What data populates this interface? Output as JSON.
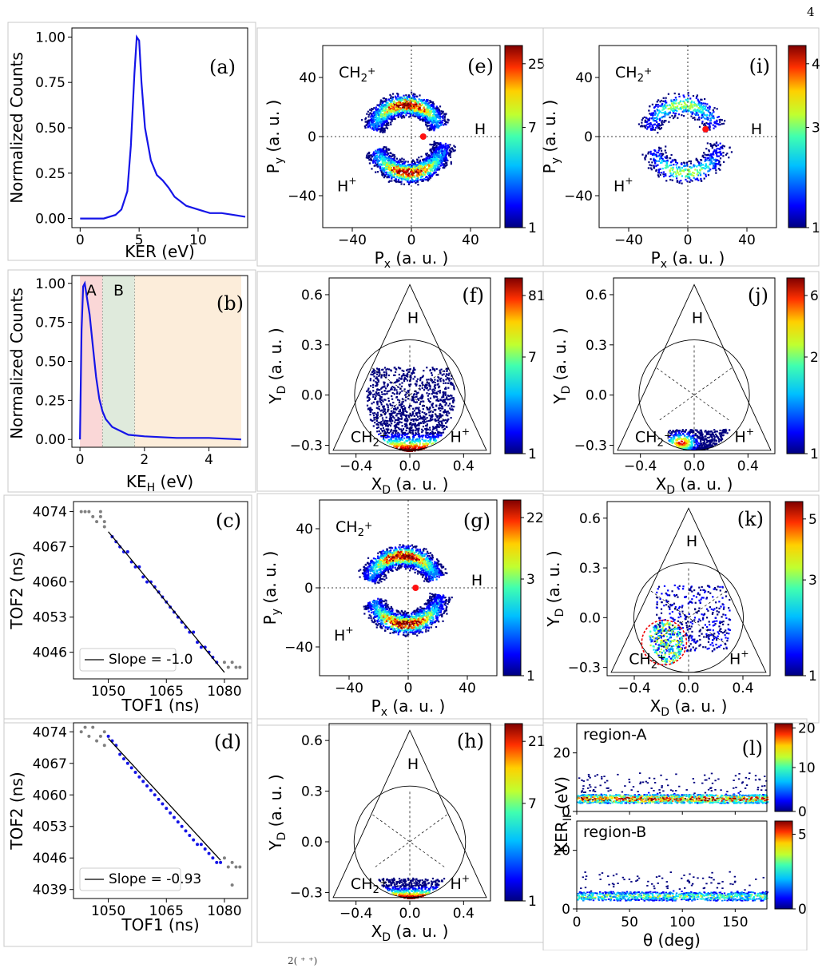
{
  "page_number": "4",
  "caption_fragment": "2( ⁺ ⁺)",
  "colormap": [
    "#00007f",
    "#0000ff",
    "#0080ff",
    "#00e0ff",
    "#3fffb7",
    "#b7ff3f",
    "#ffe600",
    "#ff6800",
    "#e80000",
    "#7f0000"
  ],
  "panels": {
    "a": {
      "label": "(a)",
      "ylabel": "Normalized Counts",
      "xlabel": "KER (eV)",
      "xticks": [
        "0",
        "5",
        "10"
      ],
      "yticks": [
        "0.00",
        "0.25",
        "0.50",
        "0.75",
        "1.00"
      ]
    },
    "b": {
      "label": "(b)",
      "ylabel": "Normalized Counts",
      "xlabel": "KE",
      "xlabel_sub": "H",
      "xlabel_unit": " (eV)",
      "xticks": [
        "0",
        "2",
        "4"
      ],
      "yticks": [
        "0.00",
        "0.25",
        "0.50",
        "0.75",
        "1.00"
      ],
      "region_a": "A",
      "region_b": "B"
    },
    "c": {
      "label": "(c)",
      "ylabel": "TOF2 (ns)",
      "xlabel": "TOF1 (ns)",
      "xticks": [
        "1050",
        "1065",
        "1080"
      ],
      "yticks": [
        "4074",
        "4067",
        "4060",
        "4053",
        "4046"
      ],
      "legend": "Slope = -1.0"
    },
    "d": {
      "label": "(d)",
      "ylabel": "TOF2 (ns)",
      "xlabel": "TOF1 (ns)",
      "xticks": [
        "1050",
        "1065",
        "1080"
      ],
      "yticks": [
        "4074",
        "4067",
        "4060",
        "4053",
        "4046",
        "4039"
      ],
      "legend": "Slope = -0.93"
    },
    "e": {
      "label": "(e)",
      "ylabel": "P",
      "ylabel_sub": "y",
      "xlabel": "P",
      "xlabel_sub": "x",
      "unit": " (a. u. )",
      "xticks": [
        "−40",
        "0",
        "40"
      ],
      "yticks": [
        "40",
        "0",
        "−40"
      ],
      "frag1": "CH",
      "frag1_sub": "2",
      "frag1_sup": "+",
      "frag2": "H",
      "frag3": "H",
      "frag3_sup": "+",
      "cbar": [
        "25",
        "7",
        "1"
      ]
    },
    "i": {
      "label": "(i)",
      "ylabel": "P",
      "ylabel_sub": "y",
      "xlabel": "P",
      "xlabel_sub": "x",
      "unit": " (a. u. )",
      "xticks": [
        "−40",
        "0",
        "40"
      ],
      "yticks": [
        "40",
        "0",
        "−40"
      ],
      "frag1": "CH",
      "frag1_sub": "2",
      "frag1_sup": "+",
      "frag2": "H",
      "frag3": "H",
      "frag3_sup": "+",
      "cbar": [
        "4",
        "3",
        "1"
      ]
    },
    "g": {
      "label": "(g)",
      "ylabel": "P",
      "ylabel_sub": "y",
      "xlabel": "P",
      "xlabel_sub": "x",
      "unit": " (a. u. )",
      "xticks": [
        "−40",
        "0",
        "40"
      ],
      "yticks": [
        "40",
        "0",
        "−40"
      ],
      "frag1": "CH",
      "frag1_sub": "2",
      "frag1_sup": "+",
      "frag2": "H",
      "frag3": "H",
      "frag3_sup": "+",
      "cbar": [
        "22",
        "3",
        "1"
      ]
    },
    "f": {
      "label": "(f)",
      "ylabel": "Y",
      "ylabel_sub": "D",
      "xlabel": "X",
      "xlabel_sub": "D",
      "unit": " (a. u. )",
      "xticks": [
        "−0.4",
        "0.0",
        "0.4"
      ],
      "yticks": [
        "0.6",
        "0.3",
        "0.0",
        "−0.3"
      ],
      "top": "H",
      "left": "CH",
      "left_sub": "2",
      "left_sup": "+",
      "right": "H",
      "right_sup": "+",
      "cbar": [
        "81",
        "7",
        "1"
      ]
    },
    "j": {
      "label": "(j)",
      "ylabel": "Y",
      "ylabel_sub": "D",
      "xlabel": "X",
      "xlabel_sub": "D",
      "unit": " (a. u. )",
      "xticks": [
        "−0.4",
        "0.0",
        "0.4"
      ],
      "yticks": [
        "0.6",
        "0.3",
        "0.0",
        "−0.3"
      ],
      "top": "H",
      "left": "CH",
      "left_sub": "2",
      "left_sup": "+",
      "right": "H",
      "right_sup": "+",
      "cbar": [
        "6",
        "2",
        "1"
      ]
    },
    "k": {
      "label": "(k)",
      "ylabel": "Y",
      "ylabel_sub": "D",
      "xlabel": "X",
      "xlabel_sub": "D",
      "unit": " (a. u. )",
      "xticks": [
        "−0.4",
        "0.0",
        "0.4"
      ],
      "yticks": [
        "0.6",
        "0.3",
        "0.0",
        "−0.3"
      ],
      "top": "H",
      "left": "CH",
      "left_sub": "2",
      "left_sup": "+",
      "right": "H",
      "right_sup": "+",
      "cbar": [
        "5",
        "3",
        "1"
      ]
    },
    "h": {
      "label": "(h)",
      "ylabel": "Y",
      "ylabel_sub": "D",
      "xlabel": "X",
      "xlabel_sub": "D",
      "unit": " (a. u. )",
      "xticks": [
        "−0.4",
        "0.0",
        "0.4"
      ],
      "yticks": [
        "0.6",
        "0.3",
        "0.0",
        "−0.3"
      ],
      "top": "H",
      "left": "CH",
      "left_sub": "2",
      "left_sup": "+",
      "right": "H",
      "right_sup": "+",
      "cbar": [
        "21",
        "7",
        "1"
      ]
    },
    "l": {
      "label": "(l)",
      "ylabel": "KER",
      "ylabel_sub": "II",
      "ylabel_unit": " (eV)",
      "xlabel": "θ (deg)",
      "xticks": [
        "0",
        "50",
        "100",
        "150"
      ],
      "yticks": [
        "20",
        "0"
      ],
      "region_a": "region-A",
      "region_b": "region-B",
      "cbar_a": [
        "20",
        "10",
        "0"
      ],
      "cbar_b": [
        "5",
        "0"
      ]
    }
  },
  "chart_data": [
    {
      "type": "line",
      "panel": "a",
      "title": "",
      "xlabel": "KER (eV)",
      "ylabel": "Normalized Counts",
      "xlim": [
        -0.7,
        14.2
      ],
      "ylim": [
        -0.05,
        1.05
      ],
      "x": [
        0,
        1,
        2,
        3,
        3.5,
        4,
        4.3,
        4.6,
        4.8,
        5.0,
        5.2,
        5.5,
        6,
        6.5,
        7,
        7.5,
        8,
        9,
        10,
        11,
        12,
        13,
        14
      ],
      "y": [
        0,
        0,
        0,
        0.02,
        0.05,
        0.15,
        0.4,
        0.8,
        1.0,
        0.98,
        0.75,
        0.5,
        0.32,
        0.24,
        0.21,
        0.17,
        0.12,
        0.07,
        0.05,
        0.03,
        0.03,
        0.02,
        0.01
      ]
    },
    {
      "type": "line",
      "panel": "b",
      "title": "",
      "xlabel": "KE_H (eV)",
      "ylabel": "Normalized Counts",
      "xlim": [
        -0.25,
        5.2
      ],
      "ylim": [
        -0.05,
        1.05
      ],
      "regions": [
        {
          "name": "A",
          "from": 0,
          "to": 0.7
        },
        {
          "name": "B",
          "from": 0.7,
          "to": 1.7
        },
        {
          "name": "",
          "from": 1.7,
          "to": 5
        }
      ],
      "x": [
        0,
        0.05,
        0.1,
        0.15,
        0.2,
        0.3,
        0.4,
        0.5,
        0.6,
        0.7,
        0.8,
        1.0,
        1.2,
        1.5,
        2,
        3,
        4,
        5
      ],
      "y": [
        0,
        0.7,
        0.98,
        1.0,
        0.93,
        0.8,
        0.6,
        0.4,
        0.26,
        0.18,
        0.13,
        0.08,
        0.06,
        0.03,
        0.02,
        0.01,
        0.01,
        0.0
      ]
    },
    {
      "type": "scatter",
      "panel": "c",
      "xlabel": "TOF1 (ns)",
      "ylabel": "TOF2 (ns)",
      "xlim": [
        1041,
        1086
      ],
      "ylim": [
        4040.7,
        4076
      ],
      "fit": {
        "slope": -1.0,
        "x": [
          1050,
          1080
        ],
        "y": [
          4070.0,
          4042.0
        ],
        "label": "Slope = -1.0"
      },
      "points_gray": [
        [
          1043,
          4074
        ],
        [
          1044,
          4074
        ],
        [
          1045,
          4074
        ],
        [
          1046,
          4073
        ],
        [
          1047,
          4072
        ],
        [
          1048,
          4074
        ],
        [
          1048,
          4073
        ],
        [
          1049,
          4071
        ],
        [
          1049,
          4072
        ],
        [
          1080,
          4044
        ],
        [
          1081,
          4043
        ],
        [
          1082,
          4044
        ],
        [
          1083,
          4043
        ],
        [
          1084,
          4043
        ]
      ],
      "points_blue": [
        [
          1051,
          4069
        ],
        [
          1052,
          4068
        ],
        [
          1053,
          4067
        ],
        [
          1054,
          4066
        ],
        [
          1055,
          4066
        ],
        [
          1056,
          4064
        ],
        [
          1057,
          4063
        ],
        [
          1058,
          4063
        ],
        [
          1059,
          4061
        ],
        [
          1060,
          4060
        ],
        [
          1061,
          4060
        ],
        [
          1062,
          4059
        ],
        [
          1063,
          4058
        ],
        [
          1064,
          4057
        ],
        [
          1065,
          4056
        ],
        [
          1066,
          4055
        ],
        [
          1067,
          4054
        ],
        [
          1068,
          4053
        ],
        [
          1069,
          4052
        ],
        [
          1070,
          4051
        ],
        [
          1071,
          4050
        ],
        [
          1072,
          4050
        ],
        [
          1073,
          4048
        ],
        [
          1074,
          4047
        ],
        [
          1075,
          4047
        ],
        [
          1076,
          4046
        ],
        [
          1077,
          4045
        ],
        [
          1078,
          4044
        ]
      ]
    },
    {
      "type": "scatter",
      "panel": "d",
      "xlabel": "TOF1 (ns)",
      "ylabel": "TOF2 (ns)",
      "xlim": [
        1041,
        1086
      ],
      "ylim": [
        4037,
        4076
      ],
      "fit": {
        "slope": -0.93,
        "x": [
          1050,
          1079
        ],
        "y": [
          4072.5,
          4045.5
        ],
        "label": "Slope = -0.93"
      },
      "points_gray": [
        [
          1043,
          4074
        ],
        [
          1044,
          4075
        ],
        [
          1045,
          4073
        ],
        [
          1046,
          4075
        ],
        [
          1047,
          4072
        ],
        [
          1048,
          4073
        ],
        [
          1049,
          4071
        ],
        [
          1049,
          4074
        ],
        [
          1080,
          4046
        ],
        [
          1081,
          4044
        ],
        [
          1082,
          4045
        ],
        [
          1083,
          4044
        ],
        [
          1084,
          4044
        ],
        [
          1082,
          4040
        ]
      ],
      "points_blue": [
        [
          1050,
          4073
        ],
        [
          1051,
          4072
        ],
        [
          1052,
          4071
        ],
        [
          1053,
          4069
        ],
        [
          1054,
          4068
        ],
        [
          1055,
          4067
        ],
        [
          1056,
          4066
        ],
        [
          1057,
          4065
        ],
        [
          1058,
          4064
        ],
        [
          1059,
          4063
        ],
        [
          1060,
          4062
        ],
        [
          1061,
          4061
        ],
        [
          1062,
          4060
        ],
        [
          1063,
          4059
        ],
        [
          1064,
          4058
        ],
        [
          1065,
          4057
        ],
        [
          1066,
          4056
        ],
        [
          1067,
          4055
        ],
        [
          1068,
          4054
        ],
        [
          1069,
          4053
        ],
        [
          1070,
          4052
        ],
        [
          1071,
          4051
        ],
        [
          1072,
          4050
        ],
        [
          1073,
          4049
        ],
        [
          1074,
          4049
        ],
        [
          1075,
          4048
        ],
        [
          1076,
          4047
        ],
        [
          1077,
          4046
        ],
        [
          1078,
          4045
        ],
        [
          1079,
          4045
        ]
      ]
    },
    {
      "type": "heatmap",
      "panel": "e",
      "xlim": [
        -60,
        60
      ],
      "ylim": [
        -60,
        60
      ],
      "red_dot": [
        8,
        0
      ],
      "cbar_range": [
        1,
        25
      ]
    },
    {
      "type": "heatmap",
      "panel": "i",
      "xlim": [
        -60,
        60
      ],
      "ylim": [
        -60,
        60
      ],
      "red_dot": [
        12,
        5
      ],
      "cbar_range": [
        1,
        4
      ]
    },
    {
      "type": "heatmap",
      "panel": "g",
      "xlim": [
        -60,
        60
      ],
      "ylim": [
        -60,
        60
      ],
      "red_dot": [
        5,
        0
      ],
      "cbar_range": [
        1,
        22
      ]
    },
    {
      "type": "heatmap",
      "panel": "f",
      "xlim": [
        -0.6,
        0.6
      ],
      "ylim": [
        -0.35,
        0.7
      ],
      "cbar_range": [
        1,
        81
      ]
    },
    {
      "type": "heatmap",
      "panel": "j",
      "xlim": [
        -0.6,
        0.6
      ],
      "ylim": [
        -0.35,
        0.7
      ],
      "cbar_range": [
        1,
        6
      ]
    },
    {
      "type": "heatmap",
      "panel": "k",
      "xlim": [
        -0.6,
        0.6
      ],
      "ylim": [
        -0.35,
        0.7
      ],
      "cbar_range": [
        1,
        5
      ]
    },
    {
      "type": "heatmap",
      "panel": "h",
      "xlim": [
        -0.6,
        0.6
      ],
      "ylim": [
        -0.35,
        0.7
      ],
      "cbar_range": [
        1,
        21
      ]
    },
    {
      "type": "heatmap",
      "panel": "l-a",
      "xlim": [
        0,
        180
      ],
      "ylim": [
        0,
        30
      ],
      "cbar_range": [
        0,
        20
      ]
    },
    {
      "type": "heatmap",
      "panel": "l-b",
      "xlim": [
        0,
        180
      ],
      "ylim": [
        0,
        30
      ],
      "cbar_range": [
        0,
        5
      ]
    }
  ]
}
